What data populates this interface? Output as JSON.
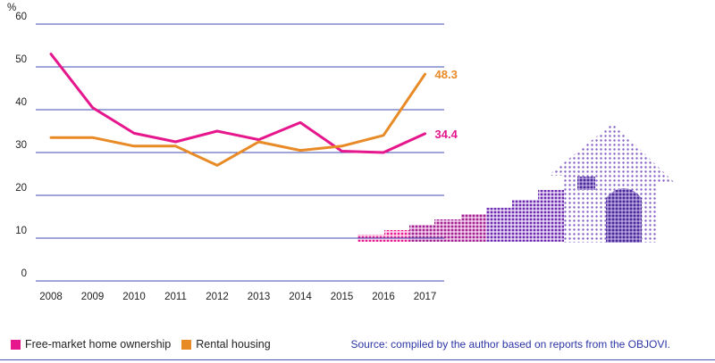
{
  "chart_data": {
    "type": "line",
    "unit_label": "%",
    "categories": [
      "2008",
      "2009",
      "2010",
      "2011",
      "2012",
      "2013",
      "2014",
      "2015",
      "2016",
      "2017"
    ],
    "yticks": [
      "0",
      "10",
      "20",
      "30",
      "40",
      "50",
      "60"
    ],
    "ylim": [
      0,
      60
    ],
    "grid": true,
    "legend_position": "bottom-left",
    "series": [
      {
        "name": "Free-market home ownership",
        "color": "#e6168c",
        "values": [
          53,
          40.5,
          34.5,
          32.5,
          35,
          33,
          37,
          30.3,
          30,
          34.4
        ],
        "end_label": "34.4"
      },
      {
        "name": "Rental housing",
        "color": "#e88a26",
        "values": [
          33.5,
          33.5,
          31.5,
          31.5,
          27,
          32.5,
          30.5,
          31.5,
          34,
          48.3
        ],
        "end_label": "48.3"
      }
    ]
  },
  "source": "Source: compiled by the author based on reports from the OBJOVI."
}
